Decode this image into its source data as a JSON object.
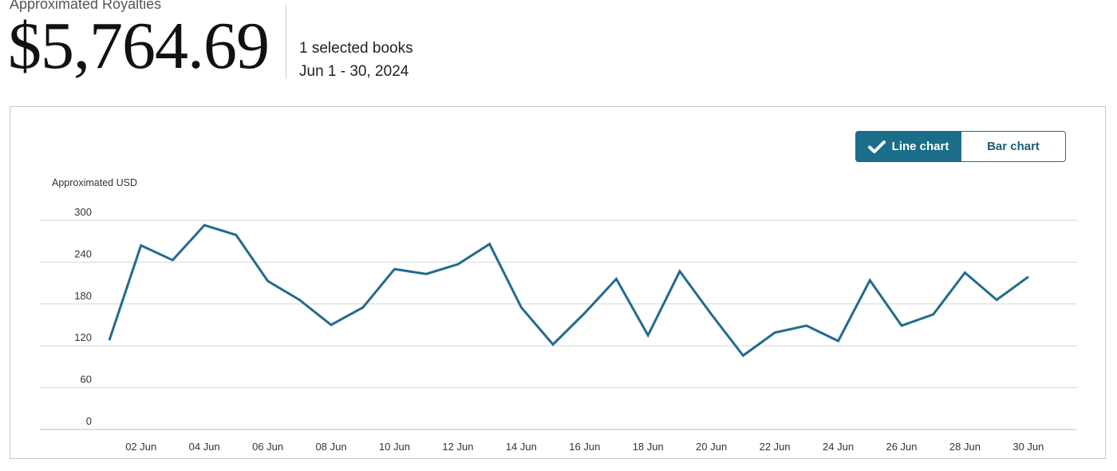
{
  "summary": {
    "label": "Approximated Royalties",
    "amount": "$5,764.69",
    "books": "1 selected books",
    "date_range": "Jun 1 - 30, 2024"
  },
  "toggle": {
    "line_label": "Line chart",
    "bar_label": "Bar chart",
    "selected": "line"
  },
  "colors": {
    "accent": "#1a6e8a",
    "line": "#236a8e",
    "grid": "#d6d6d6"
  },
  "chart_data": {
    "type": "line",
    "ylabel": "Approximated USD",
    "ylim": [
      0,
      300
    ],
    "yticks": [
      0,
      60,
      120,
      180,
      240,
      300
    ],
    "x": [
      "01 Jun",
      "02 Jun",
      "03 Jun",
      "04 Jun",
      "05 Jun",
      "06 Jun",
      "07 Jun",
      "08 Jun",
      "09 Jun",
      "10 Jun",
      "11 Jun",
      "12 Jun",
      "13 Jun",
      "14 Jun",
      "15 Jun",
      "16 Jun",
      "17 Jun",
      "18 Jun",
      "19 Jun",
      "20 Jun",
      "21 Jun",
      "22 Jun",
      "23 Jun",
      "24 Jun",
      "25 Jun",
      "26 Jun",
      "27 Jun",
      "28 Jun",
      "29 Jun",
      "30 Jun"
    ],
    "xtick_labels": [
      "02 Jun",
      "04 Jun",
      "06 Jun",
      "08 Jun",
      "10 Jun",
      "12 Jun",
      "14 Jun",
      "16 Jun",
      "18 Jun",
      "20 Jun",
      "22 Jun",
      "24 Jun",
      "26 Jun",
      "28 Jun",
      "30 Jun"
    ],
    "series": [
      {
        "values": [
          128,
          264,
          243,
          293,
          279,
          213,
          186,
          150,
          175,
          230,
          223,
          237,
          266,
          175,
          122,
          167,
          216,
          135,
          227,
          165,
          106,
          139,
          149,
          127,
          214,
          149,
          165,
          225,
          186,
          219
        ]
      }
    ],
    "grid": true,
    "legend": "none"
  }
}
